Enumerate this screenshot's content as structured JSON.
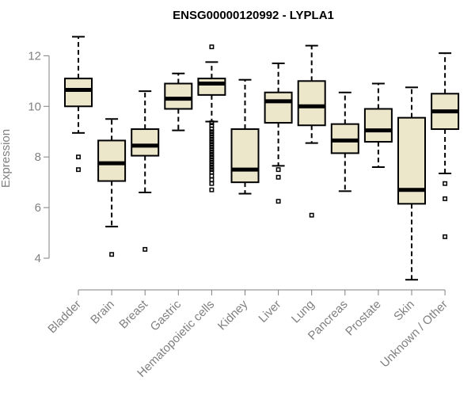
{
  "chart_data": {
    "type": "boxplot",
    "title": "ENSG00000120992 - LYPLA1",
    "xlabel": "",
    "ylabel": "Expression",
    "ylim": [
      3.0,
      13.2
    ],
    "yticks": [
      4,
      6,
      8,
      10,
      12
    ],
    "colors": {
      "box_fill": "#ece6cb",
      "line": "#000000",
      "axis": "#808080"
    },
    "categories": [
      "Bladder",
      "Brain",
      "Breast",
      "Gastric",
      "Hematopoietic cells",
      "Kidney",
      "Liver",
      "Lung",
      "Pancreas",
      "Prostate",
      "Skin",
      "Unknown / Other"
    ],
    "boxes": [
      {
        "name": "Bladder",
        "whisker_low": 8.95,
        "q1": 10.0,
        "median": 10.65,
        "q3": 11.1,
        "whisker_high": 12.75,
        "outliers": [
          8.0,
          7.5
        ]
      },
      {
        "name": "Brain",
        "whisker_low": 5.25,
        "q1": 7.05,
        "median": 7.75,
        "q3": 8.65,
        "whisker_high": 9.5,
        "outliers": [
          4.15
        ]
      },
      {
        "name": "Breast",
        "whisker_low": 6.6,
        "q1": 8.05,
        "median": 8.45,
        "q3": 9.1,
        "whisker_high": 10.6,
        "outliers": [
          4.35
        ]
      },
      {
        "name": "Gastric",
        "whisker_low": 9.05,
        "q1": 9.9,
        "median": 10.3,
        "q3": 10.9,
        "whisker_high": 11.3,
        "outliers": []
      },
      {
        "name": "Hematopoietic cells",
        "whisker_low": 9.4,
        "q1": 10.45,
        "median": 10.9,
        "q3": 11.1,
        "whisker_high": 11.75,
        "outliers": [
          12.35,
          9.35,
          9.25,
          9.1,
          9.0,
          8.9,
          8.8,
          8.7,
          8.6,
          8.5,
          8.4,
          8.3,
          8.2,
          8.1,
          8.0,
          7.9,
          7.8,
          7.7,
          7.6,
          7.5,
          7.4,
          7.25,
          7.1,
          6.95,
          6.7
        ]
      },
      {
        "name": "Kidney",
        "whisker_low": 6.55,
        "q1": 7.0,
        "median": 7.5,
        "q3": 9.1,
        "whisker_high": 11.05,
        "outliers": []
      },
      {
        "name": "Liver",
        "whisker_low": 7.65,
        "q1": 9.35,
        "median": 10.2,
        "q3": 10.55,
        "whisker_high": 11.7,
        "outliers": [
          7.5,
          7.2,
          6.25
        ]
      },
      {
        "name": "Lung",
        "whisker_low": 8.55,
        "q1": 9.25,
        "median": 10.0,
        "q3": 11.0,
        "whisker_high": 12.4,
        "outliers": [
          5.7
        ]
      },
      {
        "name": "Pancreas",
        "whisker_low": 6.65,
        "q1": 8.15,
        "median": 8.65,
        "q3": 9.3,
        "whisker_high": 10.55,
        "outliers": []
      },
      {
        "name": "Prostate",
        "whisker_low": 7.6,
        "q1": 8.6,
        "median": 9.05,
        "q3": 9.9,
        "whisker_high": 10.9,
        "outliers": []
      },
      {
        "name": "Skin",
        "whisker_low": 3.15,
        "q1": 6.15,
        "median": 6.7,
        "q3": 9.55,
        "whisker_high": 10.75,
        "outliers": []
      },
      {
        "name": "Unknown / Other",
        "whisker_low": 7.35,
        "q1": 9.1,
        "median": 9.8,
        "q3": 10.5,
        "whisker_high": 12.1,
        "outliers": [
          6.95,
          6.35,
          4.85
        ]
      }
    ]
  }
}
